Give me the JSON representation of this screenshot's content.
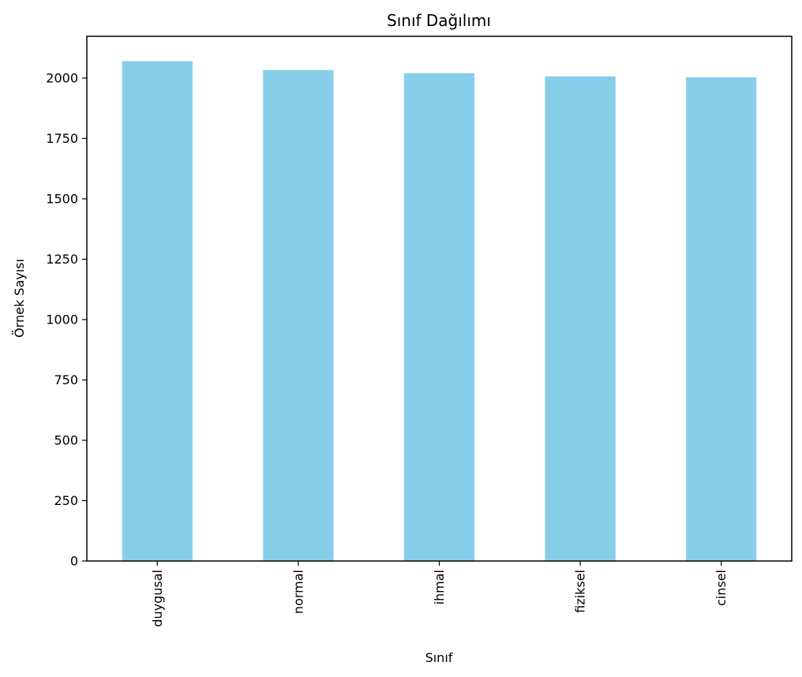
{
  "chart_data": {
    "type": "bar",
    "title": "Sınıf Dağılımı",
    "xlabel": "Sınıf",
    "ylabel": "Örnek Sayısı",
    "categories": [
      "duygusal",
      "normal",
      "ihmal",
      "fiziksel",
      "cinsel"
    ],
    "values": [
      2070,
      2033,
      2020,
      2007,
      2003
    ],
    "ylim": [
      0,
      2173
    ],
    "yticks": [
      "0",
      "250",
      "500",
      "750",
      "1000",
      "1250",
      "1500",
      "1750",
      "2000"
    ],
    "bar_color": "#87ceeb",
    "grid": false,
    "legend": false
  }
}
